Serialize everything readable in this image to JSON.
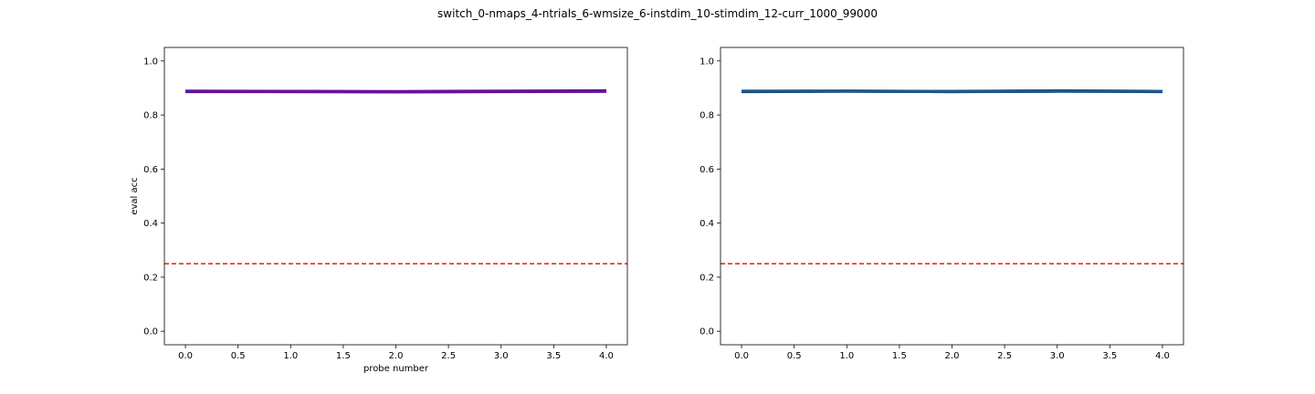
{
  "figure": {
    "suptitle": "switch_0-nmaps_4-ntrials_6-wmsize_6-instdim_10-stimdim_12-curr_1000_99000"
  },
  "chart_data": [
    {
      "type": "line",
      "title": "",
      "xlabel": "probe number",
      "ylabel": "eval acc",
      "xlim": [
        -0.2,
        4.2
      ],
      "ylim": [
        -0.05,
        1.05
      ],
      "xticks": [
        "0.0",
        "0.5",
        "1.0",
        "1.5",
        "2.0",
        "2.5",
        "3.0",
        "3.5",
        "4.0"
      ],
      "yticks": [
        "0.0",
        "0.2",
        "0.4",
        "0.6",
        "0.8",
        "1.0"
      ],
      "grid": false,
      "series": [
        {
          "x": [
            0,
            1,
            2,
            3,
            4
          ],
          "values": [
            0.888,
            0.887,
            0.886,
            0.887,
            0.889
          ],
          "color": "#1a0a4a"
        },
        {
          "x": [
            0,
            1,
            2,
            3,
            4
          ],
          "values": [
            0.886,
            0.886,
            0.885,
            0.886,
            0.887
          ],
          "color": "#3b0f6f"
        },
        {
          "x": [
            0,
            1,
            2,
            3,
            4
          ],
          "values": [
            0.889,
            0.888,
            0.887,
            0.889,
            0.89
          ],
          "color": "#4a0a80"
        },
        {
          "x": [
            0,
            1,
            2,
            3,
            4
          ],
          "values": [
            0.887,
            0.887,
            0.885,
            0.887,
            0.888
          ],
          "color": "#5b1090"
        },
        {
          "x": [
            0,
            1,
            2,
            3,
            4
          ],
          "values": [
            0.888,
            0.886,
            0.886,
            0.888,
            0.887
          ],
          "color": "#6a0fa0"
        }
      ],
      "reference_line": {
        "y": 0.25,
        "color": "#e41a1c",
        "style": "dashed"
      }
    },
    {
      "type": "line",
      "title": "",
      "xlabel": "",
      "ylabel": "",
      "xlim": [
        -0.2,
        4.2
      ],
      "ylim": [
        -0.05,
        1.05
      ],
      "xticks": [
        "0.0",
        "0.5",
        "1.0",
        "1.5",
        "2.0",
        "2.5",
        "3.0",
        "3.5",
        "4.0"
      ],
      "yticks": [
        "0.0",
        "0.2",
        "0.4",
        "0.6",
        "0.8",
        "1.0"
      ],
      "grid": false,
      "series": [
        {
          "x": [
            0,
            1,
            2,
            3,
            4
          ],
          "values": [
            0.887,
            0.889,
            0.887,
            0.889,
            0.887
          ],
          "color": "#0b1f3a"
        },
        {
          "x": [
            0,
            1,
            2,
            3,
            4
          ],
          "values": [
            0.886,
            0.887,
            0.886,
            0.888,
            0.886
          ],
          "color": "#0d2a4f"
        },
        {
          "x": [
            0,
            1,
            2,
            3,
            4
          ],
          "values": [
            0.888,
            0.889,
            0.888,
            0.89,
            0.888
          ],
          "color": "#0f3a63"
        },
        {
          "x": [
            0,
            1,
            2,
            3,
            4
          ],
          "values": [
            0.887,
            0.888,
            0.886,
            0.887,
            0.887
          ],
          "color": "#134a7a"
        },
        {
          "x": [
            0,
            1,
            2,
            3,
            4
          ],
          "values": [
            0.889,
            0.888,
            0.887,
            0.889,
            0.888
          ],
          "color": "#1a5a8f"
        }
      ],
      "reference_line": {
        "y": 0.25,
        "color": "#e41a1c",
        "style": "dashed"
      }
    }
  ]
}
